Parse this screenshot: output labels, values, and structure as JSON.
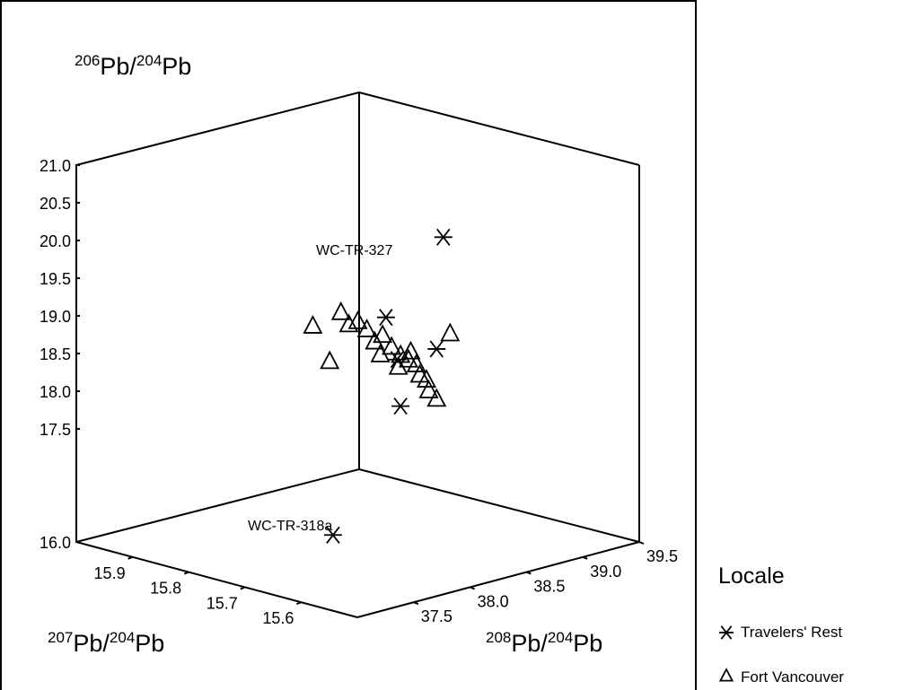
{
  "chart_data": {
    "type": "scatter3d",
    "axes": {
      "z": {
        "label_mass": "206",
        "label_den": "204",
        "label_el": "Pb",
        "range": [
          17.5,
          21.0
        ],
        "ticks": [
          "16.0",
          "17.5",
          "18.0",
          "18.5",
          "19.0",
          "19.5",
          "20.0",
          "20.5",
          "21.0"
        ]
      },
      "x": {
        "label_mass": "207",
        "label_den": "204",
        "label_el": "Pb",
        "range": [
          15.5,
          16.0
        ],
        "ticks": [
          "15.9",
          "15.8",
          "15.7",
          "15.6"
        ]
      },
      "y": {
        "label_mass": "208",
        "label_den": "204",
        "label_el": "Pb",
        "range": [
          37.0,
          39.5
        ],
        "ticks": [
          "37.5",
          "38.0",
          "38.5",
          "39.0",
          "39.5"
        ]
      }
    },
    "annotations": [
      "WC-TR-327",
      "WC-TR-318a"
    ],
    "legend": {
      "title": "Locale",
      "position": "right",
      "entries": [
        {
          "name": "Travelers' Rest",
          "marker": "asterisk"
        },
        {
          "name": "Fort Vancouver",
          "marker": "triangle"
        }
      ]
    },
    "series": [
      {
        "name": "Travelers' Rest",
        "marker": "asterisk",
        "points": [
          {
            "x": 15.66,
            "y": 38.56,
            "z": 20.1
          },
          {
            "x": 15.72,
            "y": 38.35,
            "z": 19.0
          },
          {
            "x": 15.67,
            "y": 38.55,
            "z": 18.6
          },
          {
            "x": 15.7,
            "y": 38.38,
            "z": 17.85
          },
          {
            "x": 15.77,
            "y": 38.13,
            "z": 16.1
          },
          {
            "x": 15.72,
            "y": 38.45,
            "z": 18.4
          }
        ]
      },
      {
        "name": "Fort Vancouver",
        "marker": "triangle",
        "points": [
          {
            "x": 15.82,
            "y": 38.2,
            "z": 18.75
          },
          {
            "x": 15.8,
            "y": 38.25,
            "z": 18.3
          },
          {
            "x": 15.79,
            "y": 38.3,
            "z": 18.95
          },
          {
            "x": 15.78,
            "y": 38.32,
            "z": 18.8
          },
          {
            "x": 15.77,
            "y": 38.35,
            "z": 18.85
          },
          {
            "x": 15.76,
            "y": 38.38,
            "z": 18.75
          },
          {
            "x": 15.75,
            "y": 38.4,
            "z": 18.6
          },
          {
            "x": 15.74,
            "y": 38.42,
            "z": 18.7
          },
          {
            "x": 15.73,
            "y": 38.45,
            "z": 18.55
          },
          {
            "x": 15.72,
            "y": 38.48,
            "z": 18.45
          },
          {
            "x": 15.71,
            "y": 38.5,
            "z": 18.4
          },
          {
            "x": 15.7,
            "y": 38.52,
            "z": 18.35
          },
          {
            "x": 15.7,
            "y": 38.55,
            "z": 18.2
          },
          {
            "x": 15.69,
            "y": 38.56,
            "z": 18.15
          },
          {
            "x": 15.69,
            "y": 38.58,
            "z": 18.0
          },
          {
            "x": 15.68,
            "y": 38.6,
            "z": 17.9
          },
          {
            "x": 15.74,
            "y": 38.4,
            "z": 18.45
          },
          {
            "x": 15.72,
            "y": 38.46,
            "z": 18.3
          },
          {
            "x": 15.66,
            "y": 38.62,
            "z": 18.8
          },
          {
            "x": 15.71,
            "y": 38.52,
            "z": 18.5
          }
        ]
      }
    ]
  }
}
